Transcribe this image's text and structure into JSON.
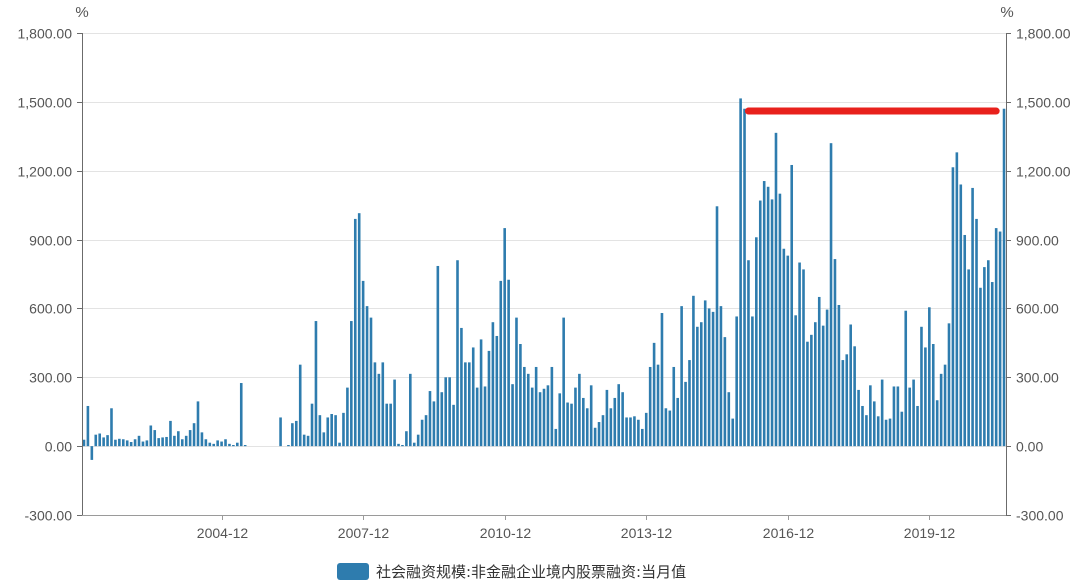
{
  "chart_data": {
    "type": "bar",
    "units": {
      "left": "%",
      "right": "%"
    },
    "ylim": [
      -300,
      1800
    ],
    "y_ticks": [
      1800,
      1500,
      1200,
      900,
      600,
      300,
      0,
      -300
    ],
    "y_tick_labels": [
      "1,800.00",
      "1,500.00",
      "1,200.00",
      "900.00",
      "600.00",
      "300.00",
      "0.00",
      "-300.00"
    ],
    "x_tick_labels": [
      "2004-12",
      "2007-12",
      "2010-12",
      "2013-12",
      "2016-12",
      "2019-12"
    ],
    "grid": true,
    "legend": {
      "position": "bottom-center"
    },
    "x": [
      "2002-01",
      "2002-02",
      "2002-03",
      "2002-04",
      "2002-05",
      "2002-06",
      "2002-07",
      "2002-08",
      "2002-09",
      "2002-10",
      "2002-11",
      "2002-12",
      "2003-01",
      "2003-02",
      "2003-03",
      "2003-04",
      "2003-05",
      "2003-06",
      "2003-07",
      "2003-08",
      "2003-09",
      "2003-10",
      "2003-11",
      "2003-12",
      "2004-01",
      "2004-02",
      "2004-03",
      "2004-04",
      "2004-05",
      "2004-06",
      "2004-07",
      "2004-08",
      "2004-09",
      "2004-10",
      "2004-11",
      "2004-12",
      "2005-01",
      "2005-02",
      "2005-03",
      "2005-04",
      "2005-05",
      "2005-06",
      "2005-07",
      "2005-08",
      "2005-09",
      "2005-10",
      "2005-11",
      "2005-12",
      "2006-01",
      "2006-02",
      "2006-03",
      "2006-04",
      "2006-05",
      "2006-06",
      "2006-07",
      "2006-08",
      "2006-09",
      "2006-10",
      "2006-11",
      "2006-12",
      "2007-01",
      "2007-02",
      "2007-03",
      "2007-04",
      "2007-05",
      "2007-06",
      "2007-07",
      "2007-08",
      "2007-09",
      "2007-10",
      "2007-11",
      "2007-12",
      "2008-01",
      "2008-02",
      "2008-03",
      "2008-04",
      "2008-05",
      "2008-06",
      "2008-07",
      "2008-08",
      "2008-09",
      "2008-10",
      "2008-11",
      "2008-12",
      "2009-01",
      "2009-02",
      "2009-03",
      "2009-04",
      "2009-05",
      "2009-06",
      "2009-07",
      "2009-08",
      "2009-09",
      "2009-10",
      "2009-11",
      "2009-12",
      "2010-01",
      "2010-02",
      "2010-03",
      "2010-04",
      "2010-05",
      "2010-06",
      "2010-07",
      "2010-08",
      "2010-09",
      "2010-10",
      "2010-11",
      "2010-12",
      "2011-01",
      "2011-02",
      "2011-03",
      "2011-04",
      "2011-05",
      "2011-06",
      "2011-07",
      "2011-08",
      "2011-09",
      "2011-10",
      "2011-11",
      "2011-12",
      "2012-01",
      "2012-02",
      "2012-03",
      "2012-04",
      "2012-05",
      "2012-06",
      "2012-07",
      "2012-08",
      "2012-09",
      "2012-10",
      "2012-11",
      "2012-12",
      "2013-01",
      "2013-02",
      "2013-03",
      "2013-04",
      "2013-05",
      "2013-06",
      "2013-07",
      "2013-08",
      "2013-09",
      "2013-10",
      "2013-11",
      "2013-12",
      "2014-01",
      "2014-02",
      "2014-03",
      "2014-04",
      "2014-05",
      "2014-06",
      "2014-07",
      "2014-08",
      "2014-09",
      "2014-10",
      "2014-11",
      "2014-12",
      "2015-01",
      "2015-02",
      "2015-03",
      "2015-04",
      "2015-05",
      "2015-06",
      "2015-07",
      "2015-08",
      "2015-09",
      "2015-10",
      "2015-11",
      "2015-12",
      "2016-01",
      "2016-02",
      "2016-03",
      "2016-04",
      "2016-05",
      "2016-06",
      "2016-07",
      "2016-08",
      "2016-09",
      "2016-10",
      "2016-11",
      "2016-12",
      "2017-01",
      "2017-02",
      "2017-03",
      "2017-04",
      "2017-05",
      "2017-06",
      "2017-07",
      "2017-08",
      "2017-09",
      "2017-10",
      "2017-11",
      "2017-12",
      "2018-01",
      "2018-02",
      "2018-03",
      "2018-04",
      "2018-05",
      "2018-06",
      "2018-07",
      "2018-08",
      "2018-09",
      "2018-10",
      "2018-11",
      "2018-12",
      "2019-01",
      "2019-02",
      "2019-03",
      "2019-04",
      "2019-05",
      "2019-06",
      "2019-07",
      "2019-08",
      "2019-09",
      "2019-10",
      "2019-11",
      "2019-12",
      "2020-01",
      "2020-02",
      "2020-03",
      "2020-04",
      "2020-05",
      "2020-06",
      "2020-07",
      "2020-08",
      "2020-09",
      "2020-10",
      "2020-11",
      "2020-12",
      "2021-01",
      "2021-02",
      "2021-03",
      "2021-04",
      "2021-05",
      "2021-06",
      "2021-07"
    ],
    "series": [
      {
        "name": "社会融资规模:非金融企业境内股票融资:当月值",
        "color": "#2e7cae",
        "values": [
          28,
          175,
          -60,
          50,
          55,
          38,
          48,
          165,
          28,
          32,
          30,
          25,
          18,
          30,
          45,
          20,
          25,
          90,
          70,
          35,
          38,
          40,
          110,
          45,
          65,
          30,
          45,
          70,
          100,
          195,
          60,
          30,
          15,
          10,
          25,
          20,
          30,
          10,
          5,
          15,
          275,
          5,
          0,
          0,
          0,
          0,
          0,
          0,
          0,
          0,
          125,
          0,
          5,
          100,
          110,
          355,
          50,
          45,
          185,
          545,
          135,
          60,
          125,
          140,
          135,
          15,
          145,
          255,
          545,
          990,
          1015,
          720,
          610,
          560,
          365,
          315,
          365,
          185,
          185,
          290,
          10,
          5,
          65,
          315,
          15,
          50,
          115,
          135,
          240,
          195,
          785,
          235,
          300,
          300,
          180,
          810,
          515,
          365,
          365,
          430,
          255,
          465,
          260,
          415,
          540,
          480,
          720,
          950,
          725,
          270,
          560,
          445,
          345,
          315,
          255,
          345,
          235,
          250,
          265,
          345,
          75,
          230,
          560,
          190,
          185,
          255,
          315,
          210,
          165,
          265,
          80,
          105,
          135,
          245,
          165,
          210,
          270,
          235,
          125,
          125,
          130,
          115,
          75,
          145,
          345,
          450,
          355,
          580,
          165,
          155,
          345,
          210,
          610,
          280,
          375,
          655,
          520,
          540,
          635,
          600,
          585,
          1045,
          610,
          475,
          235,
          120,
          565,
          1515,
          1470,
          810,
          565,
          910,
          1070,
          1155,
          1130,
          1075,
          1365,
          1100,
          860,
          830,
          1225,
          570,
          800,
          770,
          455,
          485,
          540,
          650,
          525,
          595,
          1320,
          815,
          615,
          375,
          400,
          530,
          435,
          245,
          175,
          135,
          265,
          195,
          130,
          290,
          115,
          120,
          260,
          260,
          150,
          590,
          255,
          290,
          175,
          520,
          430,
          605,
          445,
          200,
          315,
          355,
          535,
          1215,
          1280,
          1140,
          920,
          770,
          1125,
          990,
          690,
          780,
          810,
          715,
          950,
          935,
          1470
        ]
      }
    ],
    "annotations": [
      {
        "type": "horizontal-line",
        "y": 1460,
        "x_from": "2016-02",
        "x_to": "2021-05",
        "color": "#e8211c"
      }
    ],
    "colors": {
      "grid": "#e3e3e3",
      "axis": "#6b6b6b"
    }
  }
}
